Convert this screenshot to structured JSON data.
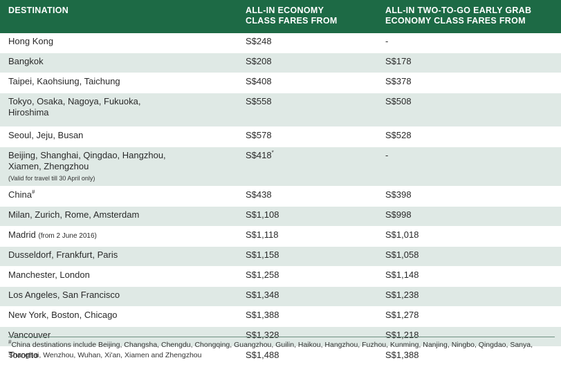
{
  "headers": {
    "destination": "DESTINATION",
    "economy_line1": "ALL-IN ECONOMY",
    "economy_line2": "CLASS FARES FROM",
    "grab_line1": "ALL-IN TWO-TO-GO EARLY GRAB",
    "grab_line2": "ECONOMY CLASS FARES FROM"
  },
  "rows": [
    {
      "destination": "Hong Kong",
      "economy": "S$248",
      "grab": "-"
    },
    {
      "destination": "Bangkok",
      "economy": "S$208",
      "grab": "S$178"
    },
    {
      "destination": "Taipei, Kaohsiung, Taichung",
      "economy": "S$408",
      "grab": "S$378"
    },
    {
      "destination_line1": "Tokyo, Osaka, Nagoya, Fukuoka,",
      "destination_line2": "Hiroshima",
      "economy": "S$558",
      "grab": "S$508"
    },
    {
      "destination": "Seoul, Jeju, Busan",
      "economy": "S$578",
      "grab": "S$528"
    },
    {
      "destination_line1": "Beijing, Shanghai, Qingdao, Hangzhou,",
      "destination_line2": "Xiamen, Zhengzhou",
      "note": "(Valid for travel till 30 April only)",
      "economy": "S$418",
      "economy_mark": "*",
      "grab": "-"
    },
    {
      "destination": "China",
      "destination_mark": "#",
      "economy": "S$438",
      "grab": "S$398"
    },
    {
      "destination": "Milan, Zurich, Rome, Amsterdam",
      "economy": "S$1,108",
      "grab": "S$998"
    },
    {
      "destination": "Madrid",
      "note": "(from 2 June 2016)",
      "economy": "S$1,118",
      "grab": "S$1,018"
    },
    {
      "destination": "Dusseldorf, Frankfurt, Paris",
      "economy": "S$1,158",
      "grab": "S$1,058"
    },
    {
      "destination": "Manchester, London",
      "economy": "S$1,258",
      "grab": "S$1,148"
    },
    {
      "destination": "Los Angeles, San Francisco",
      "economy": "S$1,348",
      "grab": "S$1,238"
    },
    {
      "destination": "New York, Boston, Chicago",
      "economy": "S$1,388",
      "grab": "S$1,278"
    },
    {
      "destination": "Vancouver",
      "economy": "S$1,328",
      "grab": "S$1,218"
    },
    {
      "destination": "Toronto",
      "economy": "S$1,488",
      "grab": "S$1,388"
    }
  ],
  "footnote": {
    "mark": "#",
    "text": "China destinations include Beijing, Changsha, Chengdu, Chongqing, Guangzhou, Guilin, Haikou, Hangzhou, Fuzhou, Kunming, Nanjing, Ningbo, Qingdao, Sanya, Shanghai, Wenzhou, Wuhan, Xi'an, Xiamen and Zhengzhou"
  },
  "colors": {
    "header_bg": "#1d6a45",
    "alt_row_bg": "#dfe9e5"
  }
}
